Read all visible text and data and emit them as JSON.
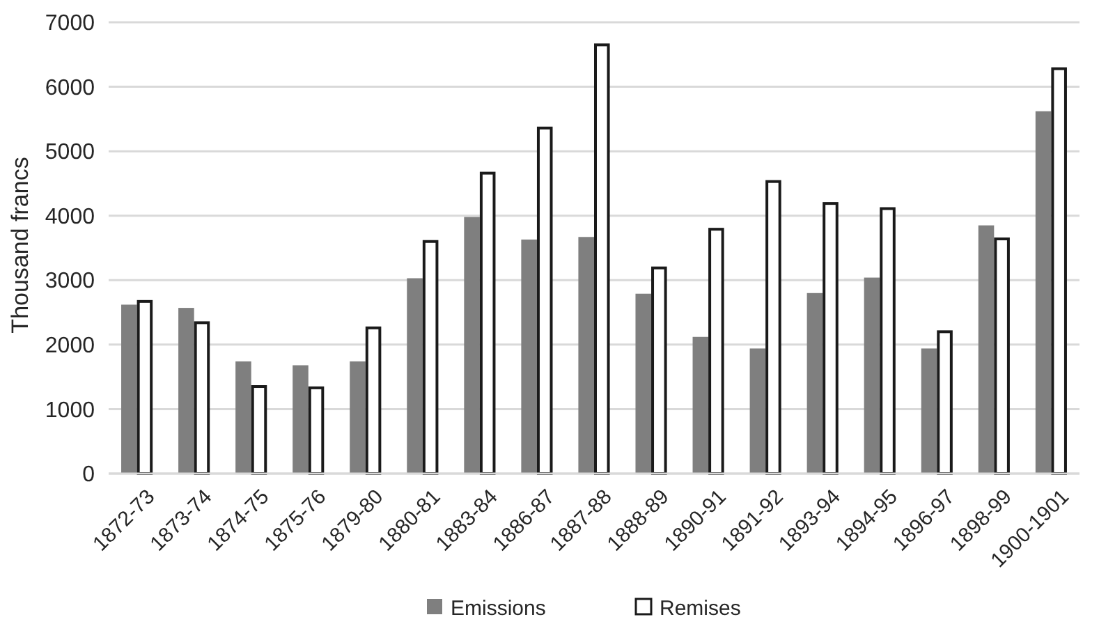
{
  "chart_data": {
    "type": "bar",
    "ylabel": "Thousand francs",
    "categories": [
      "1872-73",
      "1873-74",
      "1874-75",
      "1875-76",
      "1879-80",
      "1880-81",
      "1883-84",
      "1886-87",
      "1887-88",
      "1888-89",
      "1890-91",
      "1891-92",
      "1893-94",
      "1894-95",
      "1896-97",
      "1898-99",
      "1900-1901"
    ],
    "series": [
      {
        "name": "Emissions",
        "color": "#7f7f7f",
        "values": [
          2620,
          2570,
          1740,
          1680,
          1740,
          3030,
          3980,
          3630,
          3670,
          2790,
          2120,
          1940,
          2800,
          3040,
          1940,
          3850,
          5620
        ]
      },
      {
        "name": "Remises",
        "color": "#ffffff",
        "values": [
          2670,
          2340,
          1350,
          1330,
          2260,
          3600,
          4660,
          5360,
          6650,
          3190,
          3790,
          4530,
          4190,
          4110,
          2200,
          3640,
          6280
        ]
      }
    ],
    "ylim": [
      0,
      7000
    ],
    "yticks": [
      0,
      1000,
      2000,
      3000,
      4000,
      5000,
      6000,
      7000
    ],
    "grid": "y",
    "legend": "bottom"
  }
}
